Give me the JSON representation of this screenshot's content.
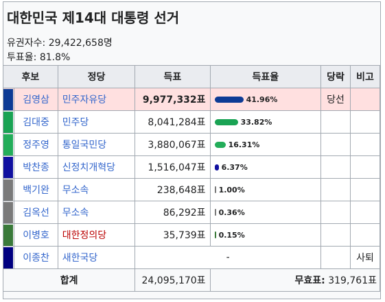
{
  "title": "대한민국 제14대 대통령 선거",
  "electorate_label": "유권자수:",
  "electorate_value": "29,422,658명",
  "turnout_label": "투표율:",
  "turnout_value": "81.8%",
  "headers": {
    "candidate": "후보",
    "party": "정당",
    "votes": "득표",
    "share": "득표율",
    "elected": "당락",
    "note": "비고"
  },
  "rows": [
    {
      "name": "김영삼",
      "party": "민주자유당",
      "party_color": "#3366cc",
      "votes": "9,977,332표",
      "share": "41.96%",
      "share_value": 41.96,
      "bar_color": "#0d3b95",
      "swatch": "#0d3b95",
      "elected": "당선",
      "note": ""
    },
    {
      "name": "김대중",
      "party": "민주당",
      "party_color": "#3366cc",
      "votes": "8,041,284표",
      "share": "33.82%",
      "share_value": 33.82,
      "bar_color": "#1aa354",
      "swatch": "#1aa354",
      "elected": "",
      "note": ""
    },
    {
      "name": "정주영",
      "party": "통일국민당",
      "party_color": "#3366cc",
      "votes": "3,880,067표",
      "share": "16.31%",
      "share_value": 16.31,
      "bar_color": "#23ad5a",
      "swatch": "#23ad5a",
      "elected": "",
      "note": ""
    },
    {
      "name": "박찬종",
      "party": "신정치개혁당",
      "party_color": "#3366cc",
      "votes": "1,516,047표",
      "share": "6.37%",
      "share_value": 6.37,
      "bar_color": "#1010a0",
      "swatch": "#1010a0",
      "elected": "",
      "note": ""
    },
    {
      "name": "백기완",
      "party": "무소속",
      "party_color": "#3366cc",
      "votes": "238,648표",
      "share": "1.00%",
      "share_value": 1.0,
      "bar_color": "#7a7a7a",
      "swatch": "#7a7a7a",
      "elected": "",
      "note": ""
    },
    {
      "name": "김옥선",
      "party": "무소속",
      "party_color": "#3366cc",
      "votes": "86,292표",
      "share": "0.36%",
      "share_value": 0.36,
      "bar_color": "#7a7a7a",
      "swatch": "#7a7a7a",
      "elected": "",
      "note": ""
    },
    {
      "name": "이병호",
      "party": "대한정의당",
      "party_color": "#ba0000",
      "votes": "35,739표",
      "share": "0.15%",
      "share_value": 0.15,
      "bar_color": "#3a7a3a",
      "swatch": "#3a7a3a",
      "elected": "",
      "note": ""
    },
    {
      "name": "이종찬",
      "party": "새한국당",
      "party_color": "#3366cc",
      "votes": "",
      "share": "-",
      "share_value": null,
      "bar_color": "",
      "swatch": "#000080",
      "elected": "",
      "note": "사퇴"
    }
  ],
  "total": {
    "label": "합계",
    "votes": "24,095,170표",
    "invalid_label": "무효표:",
    "invalid_value": "319,761표"
  }
}
